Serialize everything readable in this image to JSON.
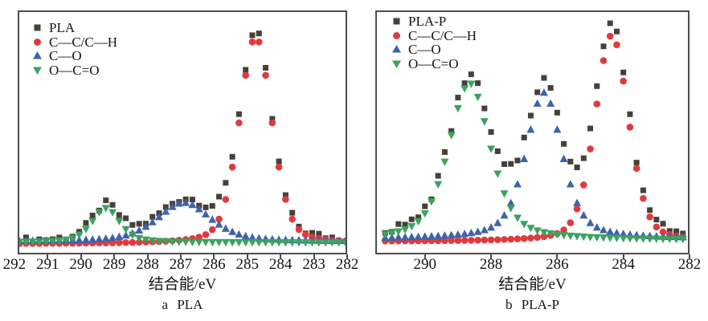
{
  "chart_data": [
    {
      "type": "scatter",
      "panel_label": "a",
      "caption": "a PLA",
      "xlabel": "结合能/eV",
      "ylabel": "",
      "xlim": [
        291.9,
        282.0
      ],
      "x_ticks": [
        292,
        291,
        290,
        289,
        288,
        287,
        286,
        285,
        284,
        283,
        282
      ],
      "samples": {
        "start": 291.85,
        "step": 0.2,
        "count": 50
      },
      "series": [
        {
          "name": "PLA",
          "marker": "square",
          "color": "#474039",
          "role": "sum",
          "baseline": 0.012,
          "jitter": 0.015
        },
        {
          "name": "C—C/C—H",
          "marker": "circle",
          "color": "#e03a3e",
          "baseline": 0.004,
          "peaks": [
            {
              "center": 284.75,
              "amplitude": 0.93,
              "fwhm": 1.15,
              "lorentz": 0.3
            }
          ]
        },
        {
          "name": "C—O",
          "marker": "triangle-up",
          "color": "#3e63ad",
          "baseline": 0.014,
          "peaks": [
            {
              "center": 286.9,
              "amplitude": 0.175,
              "fwhm": 1.9,
              "lorentz": 0.5
            }
          ]
        },
        {
          "name": "O—C=O",
          "marker": "triangle-down",
          "color": "#3aa35e",
          "baseline": 0.01,
          "peaks": [
            {
              "center": 289.25,
              "amplitude": 0.155,
              "fwhm": 1.0,
              "lorentz": 0.5
            }
          ]
        }
      ]
    },
    {
      "type": "scatter",
      "panel_label": "b",
      "caption": "b PLA-P",
      "xlabel": "结合能/eV",
      "ylabel": "",
      "xlim": [
        291.5,
        282.0
      ],
      "x_ticks": [
        290,
        288,
        286,
        284,
        282
      ],
      "samples": {
        "start": 291.2,
        "step": 0.2,
        "count": 46
      },
      "series": [
        {
          "name": "PLA-P",
          "marker": "square",
          "color": "#474039",
          "role": "sum",
          "baseline": 0.02,
          "jitter": 0.018
        },
        {
          "name": "C—C/C—H",
          "marker": "circle",
          "color": "#e03a3e",
          "baseline": 0.004,
          "peaks": [
            {
              "center": 284.35,
              "amplitude": 0.96,
              "fwhm": 1.2,
              "lorentz": 0.3
            }
          ]
        },
        {
          "name": "C—O",
          "marker": "triangle-up",
          "color": "#3e63ad",
          "baseline": 0.016,
          "peaks": [
            {
              "center": 286.4,
              "amplitude": 0.68,
              "fwhm": 1.3,
              "lorentz": 0.5
            }
          ]
        },
        {
          "name": "O—C=O",
          "marker": "triangle-down",
          "color": "#3aa35e",
          "baseline": 0.01,
          "peaks": [
            {
              "center": 288.65,
              "amplitude": 0.73,
              "fwhm": 1.5,
              "lorentz": 0.5
            }
          ]
        }
      ]
    }
  ]
}
